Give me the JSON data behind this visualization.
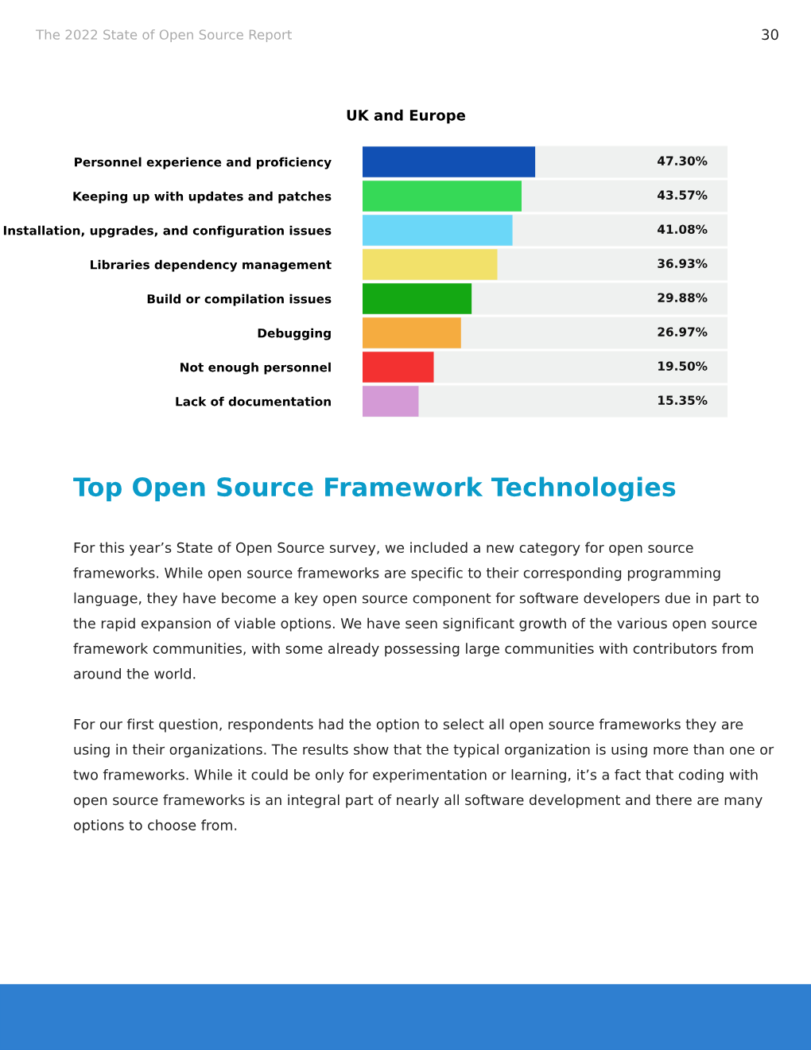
{
  "chart_data": {
    "type": "bar",
    "orientation": "horizontal",
    "title": "UK and Europe",
    "categories": [
      "Personnel experience and proficiency",
      "Keeping up with updates and patches",
      "Installation, upgrades, and configuration issues",
      "Libraries dependency management",
      "Build or compilation issues",
      "Debugging",
      "Not enough personnel",
      "Lack of documentation"
    ],
    "values": [
      47.3,
      43.57,
      41.08,
      36.93,
      29.88,
      26.97,
      19.5,
      15.35
    ],
    "colors": [
      "#1150b4",
      "#36d957",
      "#6bd7f8",
      "#f2e16a",
      "#14a813",
      "#f5ac40",
      "#f33131",
      "#d49ad6"
    ],
    "value_labels": [
      "47.30%",
      "43.57%",
      "41.08%",
      "36.93%",
      "29.88%",
      "26.97%",
      "19.50%",
      "15.35%"
    ],
    "xlim": [
      0,
      100
    ],
    "tick_labels": "y",
    "grid": false,
    "legend": false,
    "annotations": [
      "The 2022 State of Open Source Report",
      "30",
      "Top Open Source Framework Technologies",
      "For this year’s State of Open Source survey, we included a new category for open source",
      "frameworks. While open source frameworks are specific to their corresponding programming",
      "language, they have become a key open source component for software developers due in part to",
      "the rapid expansion of viable options. We have seen significant growth of the various open source",
      "framework communities, with some already possessing large communities with contributors from",
      "around the world.",
      "For our first question, respondents had the option to select all open source frameworks they are",
      "using in their organizations. The results show that the typical organization is using more than one or",
      "two frameworks. While it could be only for experimentation or learning, it’s a fact that coding with",
      "open source frameworks is an integral part of nearly all software development and there are many",
      "options to choose from."
    ]
  }
}
